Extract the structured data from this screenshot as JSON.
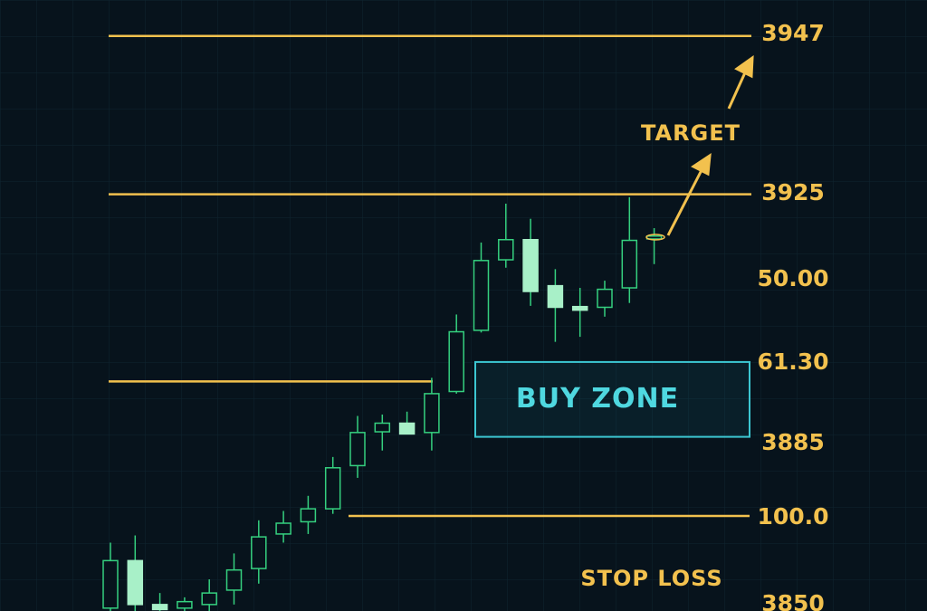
{
  "chart_data": {
    "type": "candlestick",
    "ylim": [
      3867.1,
      3952.0
    ],
    "open": [
      3867.5,
      3874.1,
      3868.0,
      3867.5,
      3868.0,
      3870.0,
      3873.0,
      3877.8,
      3879.5,
      3881.3,
      3887.3,
      3892.0,
      3893.2,
      3891.9,
      3897.6,
      3906.1,
      3915.9,
      3918.7,
      3912.3,
      3909.4,
      3909.3,
      3912.0,
      3918.8
    ],
    "close": [
      3874.1,
      3868.0,
      3867.3,
      3868.4,
      3869.6,
      3872.8,
      3877.4,
      3879.3,
      3881.3,
      3887.0,
      3891.9,
      3893.2,
      3891.7,
      3897.3,
      3905.9,
      3915.8,
      3918.7,
      3911.5,
      3909.3,
      3908.9,
      3911.8,
      3918.6,
      3919.2
    ],
    "high": [
      3876.6,
      3877.6,
      3869.6,
      3869.0,
      3871.5,
      3875.1,
      3879.7,
      3881.0,
      3883.1,
      3888.5,
      3894.2,
      3894.4,
      3894.8,
      3899.5,
      3908.3,
      3918.3,
      3923.7,
      3921.6,
      3914.6,
      3912.0,
      3913.0,
      3924.6,
      3920.3
    ],
    "low": [
      3866.0,
      3866.0,
      3866.0,
      3866.5,
      3866.0,
      3868.0,
      3870.9,
      3876.6,
      3877.8,
      3880.6,
      3885.6,
      3889.4,
      3891.7,
      3889.4,
      3897.3,
      3905.8,
      3914.8,
      3909.5,
      3904.5,
      3905.2,
      3908.0,
      3909.9,
      3915.3
    ],
    "levels": [
      3947,
      3925,
      3899.0,
      3880.3
    ],
    "buy_zone": [
      3901.7,
      3891.3
    ],
    "level_labels": [
      "3947",
      "3925",
      "50.00",
      "61.30",
      "3885",
      "100.0",
      "3850"
    ],
    "buy_zone_label": "BUY ZONE",
    "target_label": "TARGET",
    "stop_loss_label": "STOP LOSS"
  }
}
